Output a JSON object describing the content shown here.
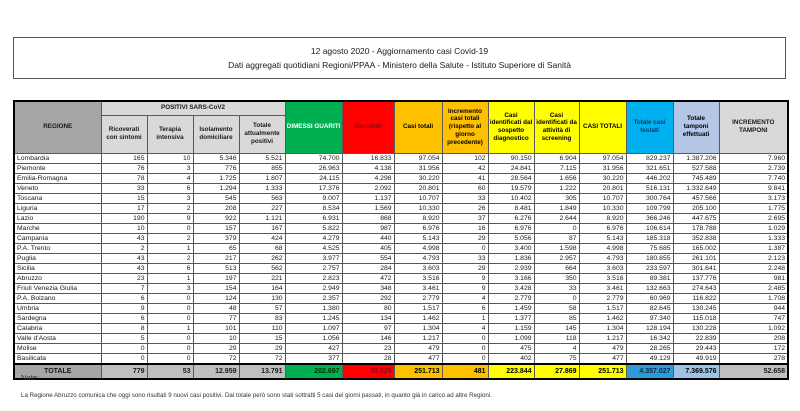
{
  "report": {
    "title": "12 agosto 2020 - Aggiornamento casi Covid-19",
    "subtitle": "Dati aggregati quotidiani Regioni/PPAA - Ministero della Salute - Istituto Superiore di Sanità"
  },
  "table": {
    "regione_header": "REGIONE",
    "positivi_group_header": "POSITIVI SARS-CoV2",
    "positivi_subcols": [
      "Ricoverati con sintomi",
      "Terapia intensiva",
      "Isolamento domiciliare",
      "Totale attualmente positivi"
    ],
    "other_cols": [
      "DIMESSI GUARITI",
      "Deceduti",
      "Casi totali",
      "Incremento casi totali (rispetto al giorno precedente)",
      "Casi identificati dal sospetto diagnostico",
      "Casi identificati da attività di screening",
      "CASI TOTALI",
      "Totale casi testati",
      "Totale tamponi effettuati",
      "INCREMENTO TAMPONI"
    ],
    "col_keys": [
      "ricoverati-con-sintomi",
      "terapia-intensiva",
      "isolamento-domiciliare",
      "totale-attualmente-positivi",
      "dimessi-guariti",
      "deceduti",
      "casi-totali",
      "incremento-casi-totali",
      "casi-sospetto-diagnostico",
      "casi-screening",
      "casi-totali-finali",
      "totale-casi-testati",
      "totale-tamponi-effettuati",
      "incremento-tamponi"
    ],
    "rows": [
      {
        "regione": "Lombardia",
        "values": [
          "165",
          "10",
          "5.346",
          "5.521",
          "74.700",
          "16.833",
          "97.054",
          "102",
          "90.150",
          "6.904",
          "97.054",
          "829.237",
          "1.387.206",
          "7.960"
        ]
      },
      {
        "regione": "Piemonte",
        "values": [
          "76",
          "3",
          "776",
          "855",
          "26.963",
          "4.138",
          "31.956",
          "42",
          "24.841",
          "7.115",
          "31.956",
          "321.651",
          "527.588",
          "2.739"
        ]
      },
      {
        "regione": "Emilia-Romagna",
        "values": [
          "78",
          "4",
          "1.725",
          "1.807",
          "24.115",
          "4.298",
          "30.220",
          "41",
          "28.564",
          "1.656",
          "30.220",
          "446.202",
          "745.489",
          "7.740"
        ]
      },
      {
        "regione": "Veneto",
        "values": [
          "33",
          "6",
          "1.294",
          "1.333",
          "17.376",
          "2.092",
          "20.801",
          "60",
          "19.579",
          "1.222",
          "20.801",
          "516.131",
          "1.332.649",
          "9.841"
        ]
      },
      {
        "regione": "Toscana",
        "values": [
          "15",
          "3",
          "545",
          "563",
          "9.007",
          "1.137",
          "10.707",
          "33",
          "10.402",
          "305",
          "10.707",
          "300.764",
          "457.566",
          "3.173"
        ]
      },
      {
        "regione": "Liguria",
        "values": [
          "17",
          "2",
          "208",
          "227",
          "8.534",
          "1.569",
          "10.330",
          "26",
          "8.481",
          "1.849",
          "10.330",
          "109.799",
          "205.100",
          "1.775"
        ]
      },
      {
        "regione": "Lazio",
        "values": [
          "190",
          "9",
          "922",
          "1.121",
          "6.931",
          "868",
          "8.920",
          "37",
          "6.276",
          "2.644",
          "8.920",
          "366.246",
          "447.675",
          "2.695"
        ]
      },
      {
        "regione": "Marche",
        "values": [
          "10",
          "0",
          "157",
          "167",
          "5.822",
          "987",
          "6.976",
          "16",
          "6.976",
          "0",
          "6.976",
          "106.614",
          "178.788",
          "1.029"
        ]
      },
      {
        "regione": "Campania",
        "values": [
          "43",
          "2",
          "379",
          "424",
          "4.279",
          "440",
          "5.143",
          "29",
          "5.056",
          "87",
          "5.143",
          "185.318",
          "352.838",
          "1.333"
        ]
      },
      {
        "regione": "P.A. Trento",
        "values": [
          "2",
          "1",
          "65",
          "68",
          "4.525",
          "405",
          "4.998",
          "0",
          "3.400",
          "1.598",
          "4.998",
          "75.685",
          "165.002",
          "1.387"
        ]
      },
      {
        "regione": "Puglia",
        "values": [
          "43",
          "2",
          "217",
          "262",
          "3.977",
          "554",
          "4.793",
          "33",
          "1.836",
          "2.957",
          "4.793",
          "180.855",
          "261.101",
          "2.123"
        ]
      },
      {
        "regione": "Sicilia",
        "values": [
          "43",
          "6",
          "513",
          "562",
          "2.757",
          "284",
          "3.603",
          "29",
          "2.939",
          "664",
          "3.603",
          "233.597",
          "301.641",
          "2.248"
        ]
      },
      {
        "regione": "Abruzzo",
        "values": [
          "23",
          "1",
          "197",
          "221",
          "2.823",
          "472",
          "3.516",
          "9",
          "3.166",
          "350",
          "3.516",
          "89.381",
          "137.776",
          "981"
        ]
      },
      {
        "regione": "Friuli Venezia Giulia",
        "values": [
          "7",
          "3",
          "154",
          "164",
          "2.949",
          "348",
          "3.461",
          "9",
          "3.428",
          "33",
          "3.461",
          "132.663",
          "274.643",
          "2.485"
        ]
      },
      {
        "regione": "P.A. Bolzano",
        "values": [
          "6",
          "0",
          "124",
          "130",
          "2.357",
          "292",
          "2.779",
          "4",
          "2.779",
          "0",
          "2.779",
          "60.969",
          "116.822",
          "1.708"
        ]
      },
      {
        "regione": "Umbria",
        "values": [
          "9",
          "0",
          "48",
          "57",
          "1.380",
          "80",
          "1.517",
          "6",
          "1.459",
          "58",
          "1.517",
          "82.645",
          "130.245",
          "944"
        ]
      },
      {
        "regione": "Sardegna",
        "values": [
          "6",
          "0",
          "77",
          "83",
          "1.245",
          "134",
          "1.462",
          "1",
          "1.377",
          "85",
          "1.462",
          "97.340",
          "115.018",
          "747"
        ]
      },
      {
        "regione": "Calabria",
        "values": [
          "8",
          "1",
          "101",
          "110",
          "1.097",
          "97",
          "1.304",
          "4",
          "1.159",
          "145",
          "1.304",
          "128.194",
          "130.228",
          "1.092"
        ]
      },
      {
        "regione": "Valle d'Aosta",
        "values": [
          "5",
          "0",
          "10",
          "15",
          "1.056",
          "146",
          "1.217",
          "0",
          "1.099",
          "118",
          "1.217",
          "16.342",
          "22.839",
          "208"
        ]
      },
      {
        "regione": "Molise",
        "values": [
          "0",
          "0",
          "29",
          "29",
          "427",
          "23",
          "479",
          "0",
          "475",
          "4",
          "479",
          "28.265",
          "29.443",
          "172"
        ]
      },
      {
        "regione": "Basilicata",
        "values": [
          "0",
          "0",
          "72",
          "72",
          "377",
          "28",
          "477",
          "0",
          "402",
          "75",
          "477",
          "49.129",
          "49.919",
          "278"
        ]
      }
    ],
    "totale_row": {
      "regione": "TOTALE",
      "values": [
        "779",
        "53",
        "12.959",
        "13.791",
        "202.697",
        "35.225",
        "251.713",
        "481",
        "223.844",
        "27.869",
        "251.713",
        "4.357.027",
        "7.369.576",
        "52.658"
      ]
    }
  },
  "note": {
    "label": "Note:",
    "text": "La Regione Abruzzo comunica che oggi sono risultati 9 nuovi casi positivi. Dal totale però sono stati sottratti 5 casi dei giorni passati, in quanto già in carico ad altre Regioni."
  },
  "colors": {
    "green": "#00B050",
    "red": "#FF0000",
    "red_text": "#9C0006",
    "amber": "#FFC000",
    "yellow": "#FFFF00",
    "cyan": "#00B0F0",
    "light_blue": "#B4C7E7",
    "gray_dark": "#A6A6A6",
    "gray_light": "#D9D9D9",
    "gray_mid": "#BFBFBF"
  }
}
